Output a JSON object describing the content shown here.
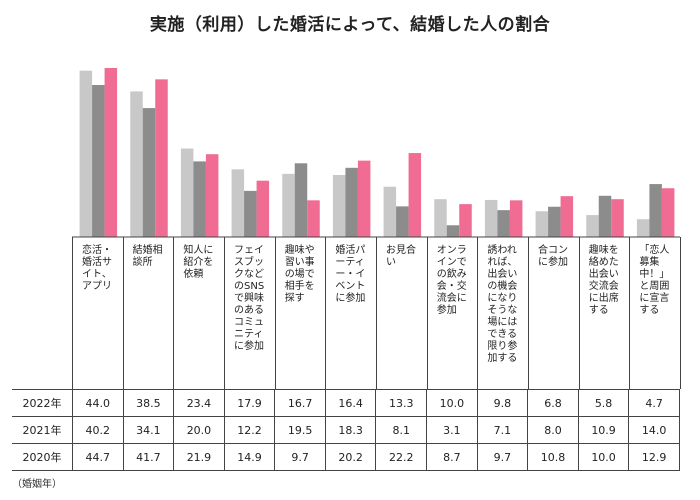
{
  "title": "実施（利用）した婚活によって、結婚した人の割合",
  "footnote": "（婚姻年）",
  "colors": {
    "y2022": "#c8c8c8",
    "y2021": "#8c8c8c",
    "y2020": "#f06c92",
    "grid": "#444444"
  },
  "chart_data": {
    "type": "bar",
    "title": "実施（利用）した婚活によって、結婚した人の割合",
    "categories": [
      "恋活・婚活サイト、アプリ",
      "結婚相談所",
      "知人に紹介を依頼",
      "フェイスブックなどのSNSで興味のあるコミュニティに参加",
      "趣味や習い事の場で相手を探す",
      "婚活パーティー・イベントに参加",
      "お見合い",
      "オンラインでの飲み会・交流会に参加",
      "誘われれば、出会いの機会になりそうな場にはできる限り参加する",
      "合コンに参加",
      "趣味を絡めた出会い交流会に出席する",
      "「恋人募集中！」と周囲に宣言する"
    ],
    "series": [
      {
        "name": "2022年",
        "values": [
          44.0,
          38.5,
          23.4,
          17.9,
          16.7,
          16.4,
          13.3,
          10.0,
          9.8,
          6.8,
          5.8,
          4.7
        ]
      },
      {
        "name": "2021年",
        "values": [
          40.2,
          34.1,
          20.0,
          12.2,
          19.5,
          18.3,
          8.1,
          3.1,
          7.1,
          8.0,
          10.9,
          14.0
        ]
      },
      {
        "name": "2020年",
        "values": [
          44.7,
          41.7,
          21.9,
          14.9,
          9.7,
          20.2,
          22.2,
          8.7,
          9.7,
          10.8,
          10.0,
          12.9
        ]
      }
    ],
    "table_values": [
      [
        "44.0",
        "38.5",
        "23.4",
        "17.9",
        "16.7",
        "16.4",
        "13.3",
        "10.0",
        "9.8",
        "6.8",
        "5.8",
        "4.7"
      ],
      [
        "40.2",
        "34.1",
        "20.0",
        "12.2",
        "19.5",
        "18.3",
        "8.1",
        "3.1",
        "7.1",
        "8.0",
        "10.9",
        "14.0"
      ],
      [
        "44.7",
        "41.7",
        "21.9",
        "14.9",
        "9.7",
        "20.2",
        "22.2",
        "8.7",
        "9.7",
        "10.8",
        "10.0",
        "12.9"
      ]
    ],
    "ylim": [
      0,
      44.7
    ],
    "grid": false,
    "legend": "table rows at bottom"
  }
}
